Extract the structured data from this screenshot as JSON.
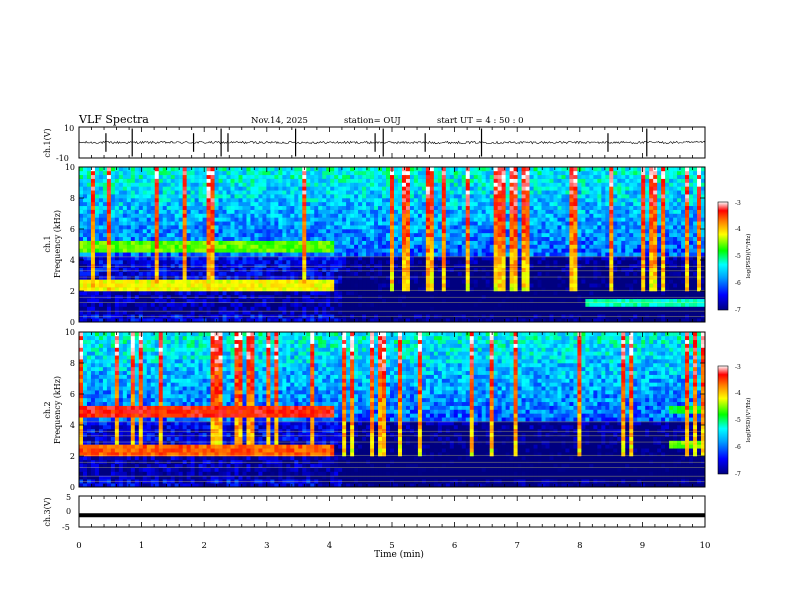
{
  "header": {
    "title": "VLF Spectra",
    "date": "Nov.14, 2025",
    "station": "station= OUJ",
    "start": "start UT = 4 : 50 : 0"
  },
  "colorbar": {
    "label": "log(PSD)(V²/Hz)",
    "ticks": [
      "-3",
      "-4",
      "-5",
      "-6",
      "-7"
    ],
    "range": [
      -7,
      -3
    ]
  },
  "chart_data": [
    {
      "type": "line",
      "panel": "ch1-waveform",
      "ylabel": "ch.1(V)",
      "ylim": [
        -10,
        10
      ],
      "yticks": [
        "10",
        "-10"
      ],
      "baseline": 0,
      "spikes_min": [
        0.43,
        0.85,
        1.83,
        2.27,
        2.38,
        3.46,
        4.73,
        4.86,
        5.53,
        6.43,
        8.45,
        9.07
      ]
    },
    {
      "type": "heatmap",
      "panel": "ch1-spectrogram",
      "ylabel": "ch.1 Frequency (kHz)",
      "ylim": [
        0,
        10
      ],
      "yticks": [
        "0",
        "2",
        "4",
        "6",
        "8",
        "10"
      ],
      "bands_khz": [
        {
          "f": 4.9,
          "until_min": 4.1,
          "level": -4.6
        },
        {
          "f": 2.4,
          "until_min": 4.1,
          "level": -4.2
        },
        {
          "f": 1.2,
          "from_min": 8.1,
          "level": -5.2
        }
      ]
    },
    {
      "type": "heatmap",
      "panel": "ch2-spectrogram",
      "ylabel": "ch.2 Frequency (kHz)",
      "ylim": [
        0,
        10
      ],
      "yticks": [
        "0",
        "2",
        "4",
        "6",
        "8",
        "10"
      ],
      "bands_khz": [
        {
          "f": 4.9,
          "until_min": 4.1,
          "level": -3.4
        },
        {
          "f": 2.4,
          "until_min": 4.1,
          "level": -3.6
        },
        {
          "f": 2.8,
          "from_min": 9.4,
          "level": -4.5
        },
        {
          "f": 5.0,
          "from_min": 9.4,
          "level": -4.9
        }
      ]
    },
    {
      "type": "line",
      "panel": "ch3-waveform",
      "ylabel": "ch.3(V)",
      "ylim": [
        -5,
        5
      ],
      "yticks": [
        "5",
        "0",
        "-5"
      ],
      "baseline": -1.2
    }
  ],
  "xaxis": {
    "label": "Time (min)",
    "range": [
      0,
      10
    ],
    "ticks": [
      "0",
      "1",
      "2",
      "3",
      "4",
      "5",
      "6",
      "7",
      "8",
      "9",
      "10"
    ]
  }
}
